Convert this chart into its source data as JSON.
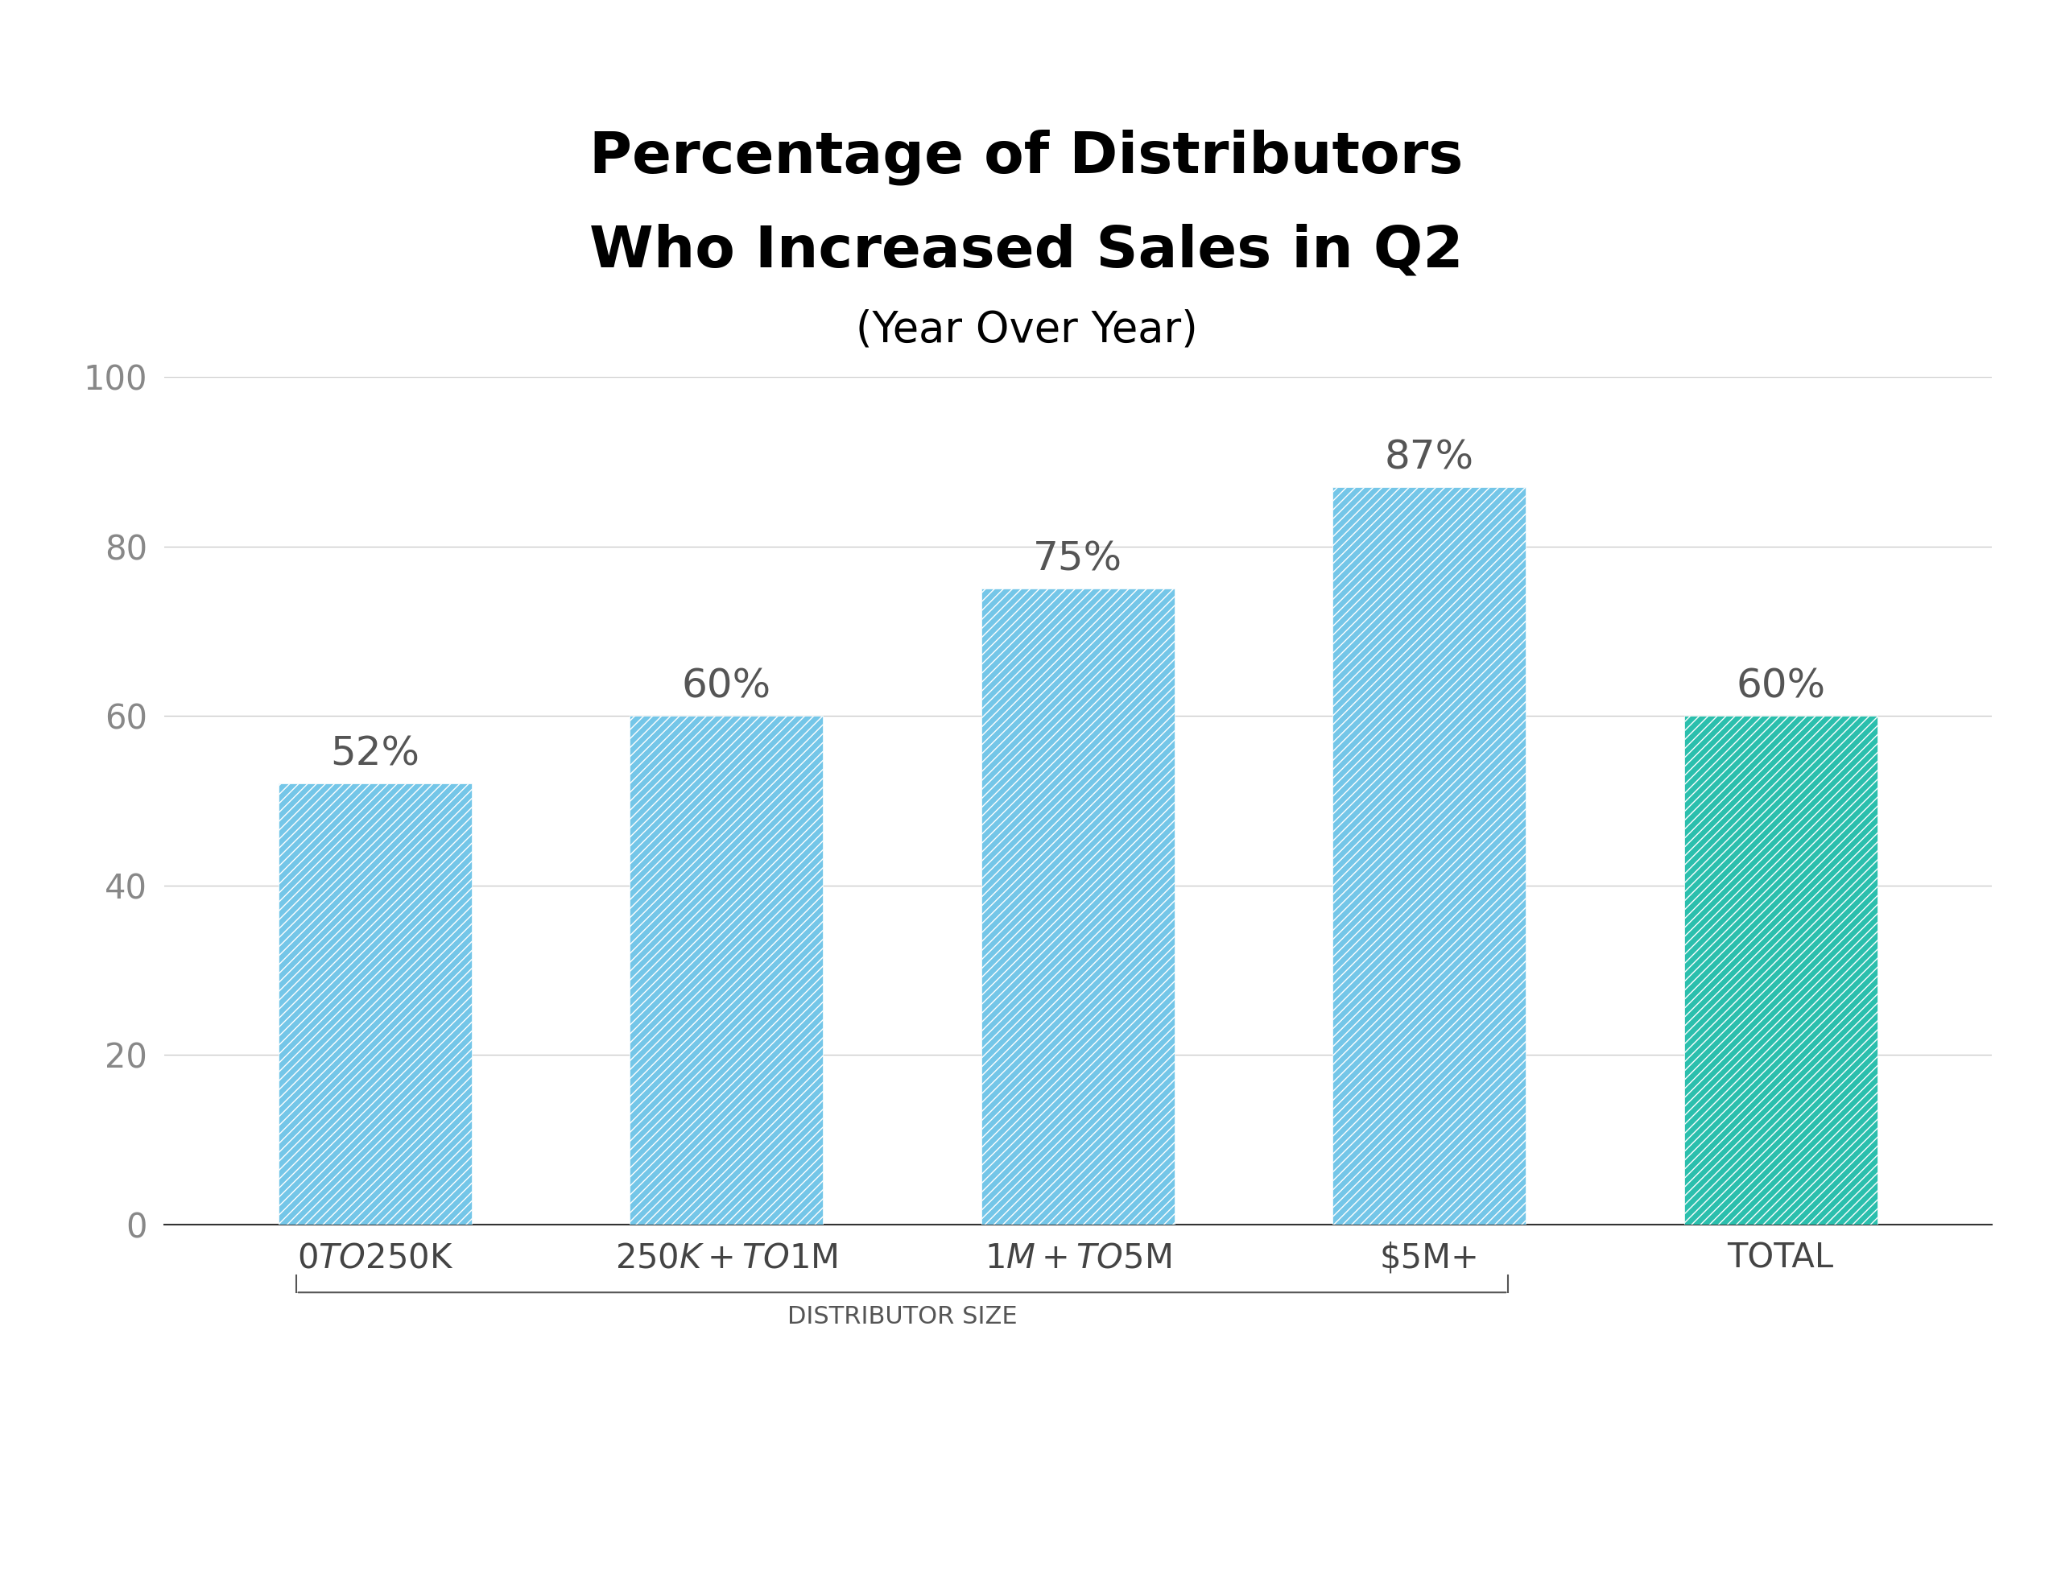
{
  "title_line1": "Percentage of Distributors",
  "title_line2": "Who Increased Sales in Q2",
  "subtitle": "(Year Over Year)",
  "categories": [
    "$0 TO $250K",
    "$250K+ TO $1M",
    "$1M+ TO $5M",
    "$5M+",
    "TOTAL"
  ],
  "values": [
    52,
    60,
    75,
    87,
    60
  ],
  "bar_colors": [
    "#74C6E8",
    "#74C6E8",
    "#74C6E8",
    "#74C6E8",
    "#2BBFAD"
  ],
  "hatch": "///",
  "value_labels": [
    "52%",
    "60%",
    "75%",
    "87%",
    "60%"
  ],
  "xlabel_group": "DISTRIBUTOR SIZE",
  "ylim": [
    0,
    100
  ],
  "yticks": [
    0,
    20,
    40,
    60,
    80,
    100
  ],
  "background_color": "#ffffff",
  "title_fontsize": 52,
  "subtitle_fontsize": 38,
  "tick_fontsize": 30,
  "value_fontsize": 36,
  "xlabel_group_fontsize": 22,
  "tick_color": "#888888",
  "grid_color": "#cccccc",
  "title_color": "#000000",
  "value_label_color": "#555555",
  "xlabel_group_color": "#555555"
}
